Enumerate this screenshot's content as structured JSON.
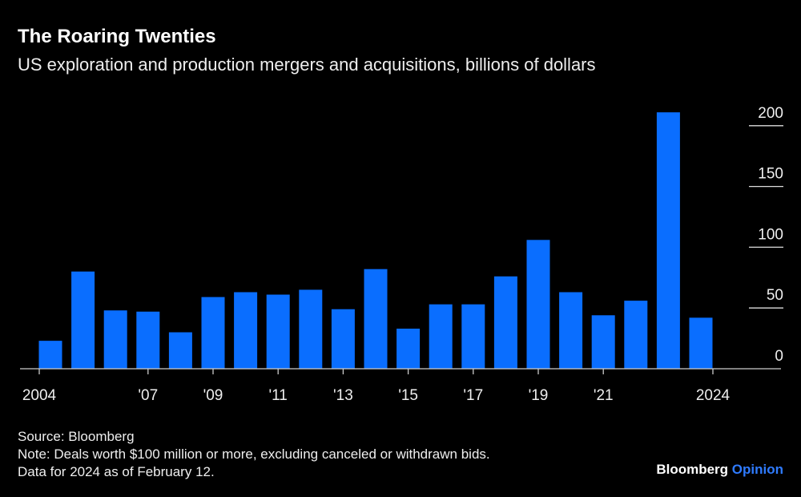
{
  "chart_data": {
    "type": "bar",
    "title": "The Roaring Twenties",
    "subtitle": "US exploration and production mergers and acquisitions, billions of dollars",
    "categories": [
      "2004",
      "2005",
      "2006",
      "2007",
      "2008",
      "2009",
      "2010",
      "2011",
      "2012",
      "2013",
      "2014",
      "2015",
      "2016",
      "2017",
      "2018",
      "2019",
      "2020",
      "2021",
      "2022",
      "2023",
      "2024"
    ],
    "values": [
      23,
      80,
      48,
      47,
      30,
      59,
      63,
      61,
      65,
      49,
      82,
      33,
      53,
      53,
      76,
      106,
      63,
      44,
      56,
      211,
      42
    ],
    "x_tick_labels": [
      {
        "year": "2004",
        "label": "2004"
      },
      {
        "year": "2007",
        "label": "'07"
      },
      {
        "year": "2009",
        "label": "'09"
      },
      {
        "year": "2011",
        "label": "'11"
      },
      {
        "year": "2013",
        "label": "'13"
      },
      {
        "year": "2015",
        "label": "'15"
      },
      {
        "year": "2017",
        "label": "'17"
      },
      {
        "year": "2019",
        "label": "'19"
      },
      {
        "year": "2021",
        "label": "'21"
      },
      {
        "year": "2024",
        "label": "2024"
      }
    ],
    "y_ticks": [
      0,
      50,
      100,
      150,
      200
    ],
    "ylim": [
      0,
      210
    ],
    "y_axis_side": "right",
    "bar_color": "#0a6eff",
    "grid": false
  },
  "footer": {
    "source": "Source: Bloomberg",
    "note": "Note: Deals worth $100 million or more, excluding canceled or withdrawn bids.",
    "data_note": "Data for 2024 as of February 12.",
    "logo_main": "Bloomberg",
    "logo_accent": "Opinion"
  }
}
